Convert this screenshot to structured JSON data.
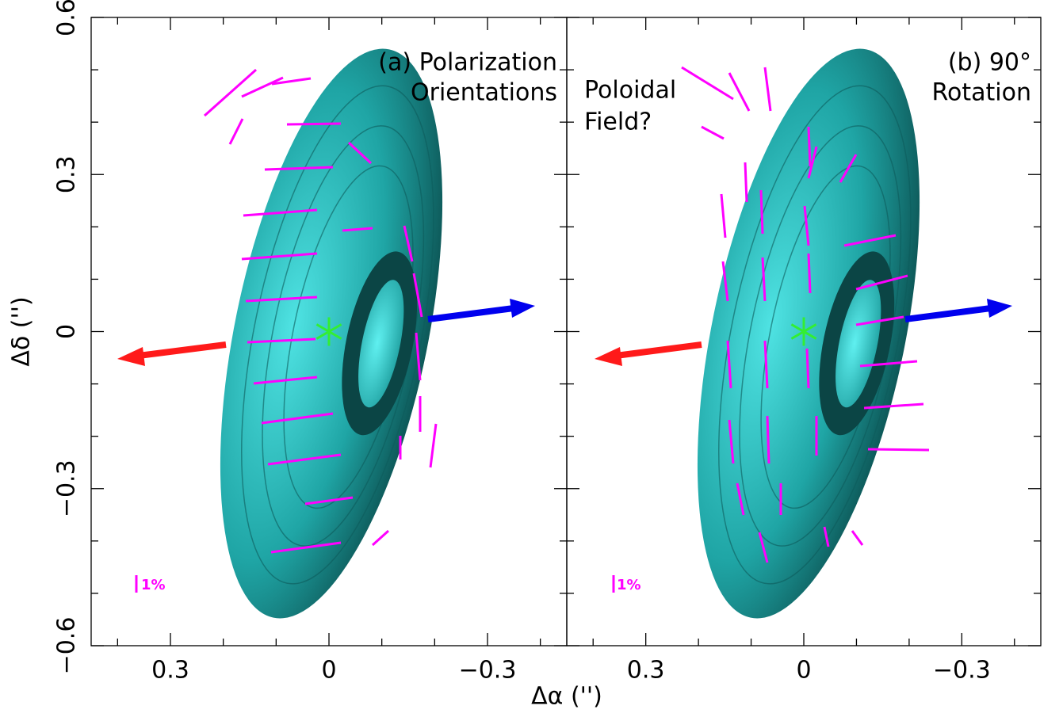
{
  "chart_data": [
    {
      "type": "scatter",
      "x": [
        0
      ],
      "values": [
        0
      ],
      "color": "#33ee33",
      "xlabel": "Δα ('')",
      "ylabel": "Δδ ('')",
      "xlim": [
        0.45,
        -0.45
      ],
      "ylim": [
        -0.6,
        0.6
      ],
      "xticks": [
        0.3,
        0,
        {
          "value": -0.3,
          "label": "−0.3"
        }
      ],
      "xminor": [
        0.4,
        0.2,
        0.1,
        -0.1,
        -0.2,
        -0.4
      ],
      "yticks": [
        {
          "value": -0.6,
          "label": "−0.6"
        },
        {
          "value": -0.3,
          "label": "−0.3"
        },
        0,
        0.3,
        0.6
      ],
      "yminor": [
        -0.5,
        -0.4,
        -0.2,
        -0.1,
        0.1,
        0.2,
        0.4,
        0.5
      ],
      "annotations": [
        "(a) Polarization",
        "Orientations"
      ],
      "scale_label": "1%"
    },
    {
      "type": "scatter",
      "x": [
        0
      ],
      "values": [
        0
      ],
      "color": "#33ee33",
      "xlim": [
        0.45,
        -0.45
      ],
      "ylim": [
        -0.6,
        0.6
      ],
      "xticks": [
        0.3,
        0,
        {
          "value": -0.3,
          "label": "−0.3"
        }
      ],
      "xminor": [
        0.4,
        0.2,
        0.1,
        -0.1,
        -0.2,
        -0.4
      ],
      "annotations": [
        "(b) 90°",
        "Rotation"
      ],
      "side_note": [
        "Poloidal",
        "Field?"
      ],
      "scale_label": "1%"
    }
  ]
}
